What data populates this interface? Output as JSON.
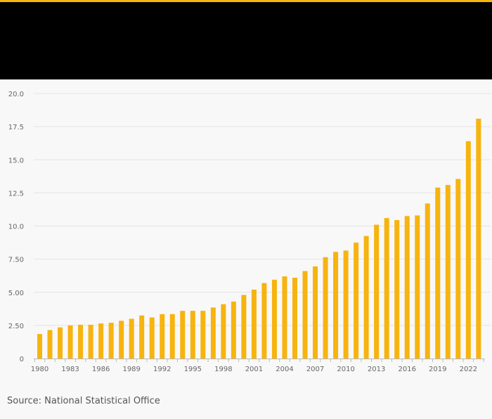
{
  "colors": {
    "accent": "#f7b30f",
    "bar": "#f7b30f",
    "header_bg": "#000000",
    "grid": "#e3e3e3",
    "tick_text": "#666666"
  },
  "source_text": "Source: National Statistical Office",
  "chart_data": {
    "type": "bar",
    "title": "",
    "xlabel": "",
    "ylabel": "",
    "ylim": [
      0,
      20
    ],
    "yticks": [
      0,
      2.5,
      5,
      7.5,
      10,
      12.5,
      15,
      17.5,
      20
    ],
    "ytick_labels": [
      "0",
      "2.50",
      "5.00",
      "7.50",
      "10.0",
      "12.5",
      "15.0",
      "17.5",
      "20.0"
    ],
    "xtick_labels": [
      "1980",
      "1983",
      "1986",
      "1989",
      "1992",
      "1995",
      "1998",
      "2001",
      "2004",
      "2007",
      "2010",
      "2013",
      "2016",
      "2019",
      "2022"
    ],
    "categories": [
      1980,
      1981,
      1982,
      1983,
      1984,
      1985,
      1986,
      1987,
      1988,
      1989,
      1990,
      1991,
      1992,
      1993,
      1994,
      1995,
      1996,
      1997,
      1998,
      1999,
      2000,
      2001,
      2002,
      2003,
      2004,
      2005,
      2006,
      2007,
      2008,
      2009,
      2010,
      2011,
      2012,
      2013,
      2014,
      2015,
      2016,
      2017,
      2018,
      2019,
      2020,
      2021,
      2022,
      2023
    ],
    "values": [
      1.85,
      2.15,
      2.35,
      2.5,
      2.55,
      2.55,
      2.65,
      2.7,
      2.85,
      3.0,
      3.25,
      3.1,
      3.35,
      3.35,
      3.6,
      3.6,
      3.6,
      3.85,
      4.1,
      4.3,
      4.8,
      5.2,
      5.7,
      5.95,
      6.2,
      6.1,
      6.6,
      6.95,
      7.65,
      8.05,
      8.15,
      8.75,
      9.25,
      10.1,
      10.6,
      10.45,
      10.75,
      10.8,
      11.7,
      12.9,
      13.1,
      13.55,
      16.4,
      18.1
    ]
  }
}
